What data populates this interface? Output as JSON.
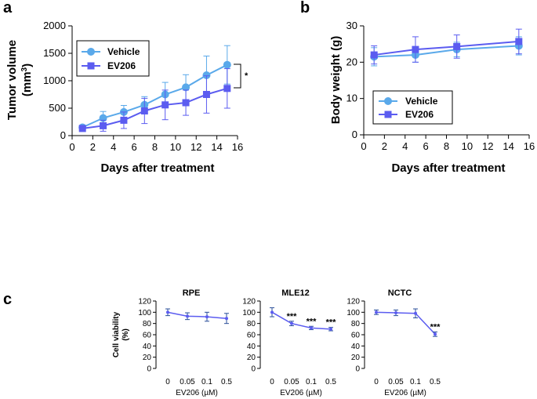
{
  "panels": {
    "a": "a",
    "b": "b",
    "c": "c"
  },
  "colors": {
    "vehicle": "#5aa9ea",
    "ev206": "#5b5cf0",
    "axis": "#000000",
    "error": "#2a4f9a"
  },
  "chart_data": [
    {
      "id": "a",
      "type": "line",
      "ylabel_line1": "Tumor volume",
      "ylabel_line2": "(mm",
      "ylabel_sup": "3",
      "ylabel_close": ")",
      "xlabel": "Days after treatment",
      "xlim": [
        0,
        16
      ],
      "ylim": [
        0,
        2000
      ],
      "xticks": [
        "0",
        "2",
        "4",
        "6",
        "8",
        "10",
        "12",
        "14",
        "16"
      ],
      "yticks": [
        "0",
        "500",
        "1000",
        "1500",
        "2000"
      ],
      "legend": [
        "Vehicle",
        "EV206"
      ],
      "significance": "*",
      "series": [
        {
          "name": "Vehicle",
          "marker": "circle",
          "color": "#5aa9ea",
          "x": [
            1,
            3,
            5,
            7,
            9,
            11,
            13,
            15
          ],
          "y": [
            150,
            320,
            430,
            560,
            750,
            880,
            1100,
            1290
          ],
          "err": [
            40,
            120,
            120,
            150,
            220,
            230,
            350,
            350
          ]
        },
        {
          "name": "EV206",
          "marker": "square",
          "color": "#5b5cf0",
          "x": [
            1,
            3,
            5,
            7,
            9,
            11,
            13,
            15
          ],
          "y": [
            130,
            180,
            280,
            450,
            560,
            600,
            750,
            860
          ],
          "err": [
            30,
            100,
            150,
            230,
            270,
            230,
            340,
            360
          ]
        }
      ]
    },
    {
      "id": "b",
      "type": "line",
      "ylabel": "Body weight (g)",
      "xlabel": "Days after treatment",
      "xlim": [
        0,
        16
      ],
      "ylim": [
        0,
        30
      ],
      "xticks": [
        "0",
        "2",
        "4",
        "6",
        "8",
        "10",
        "12",
        "14",
        "16"
      ],
      "yticks": [
        "0",
        "10",
        "20",
        "30"
      ],
      "legend": [
        "Vehicle",
        "EV206"
      ],
      "series": [
        {
          "name": "Vehicle",
          "marker": "circle",
          "color": "#5aa9ea",
          "x": [
            1,
            5,
            9,
            15
          ],
          "y": [
            21.5,
            22,
            23.5,
            24.5
          ],
          "err": [
            2.5,
            2,
            2,
            2.5
          ]
        },
        {
          "name": "EV206",
          "marker": "square",
          "color": "#5b5cf0",
          "x": [
            1,
            5,
            9,
            15
          ],
          "y": [
            22,
            23.5,
            24.3,
            25.7
          ],
          "err": [
            2.5,
            3.5,
            3.2,
            3.4
          ]
        }
      ]
    },
    {
      "id": "c",
      "type": "line",
      "ylabel_line1": "Cell viability",
      "ylabel_line2": "(%)",
      "xlabel": "EV206 (µM)",
      "ylim": [
        0,
        120
      ],
      "yticks": [
        "0",
        "20",
        "40",
        "60",
        "80",
        "100",
        "120"
      ],
      "xticks": [
        "0",
        "0.05",
        "0.1",
        "0.5"
      ],
      "subplots": [
        {
          "title": "RPE",
          "values": [
            100,
            93,
            92,
            89
          ],
          "err": [
            6,
            6,
            8,
            9
          ],
          "sig": [
            "",
            "",
            "",
            ""
          ]
        },
        {
          "title": "MLE12",
          "values": [
            100,
            80,
            72,
            70
          ],
          "err": [
            8,
            4,
            3,
            3
          ],
          "sig": [
            "",
            "***",
            "***",
            "***"
          ]
        },
        {
          "title": "NCTC",
          "values": [
            100,
            99,
            98,
            61
          ],
          "err": [
            4,
            5,
            8,
            4
          ],
          "sig": [
            "",
            "",
            "",
            "***"
          ]
        }
      ]
    }
  ]
}
